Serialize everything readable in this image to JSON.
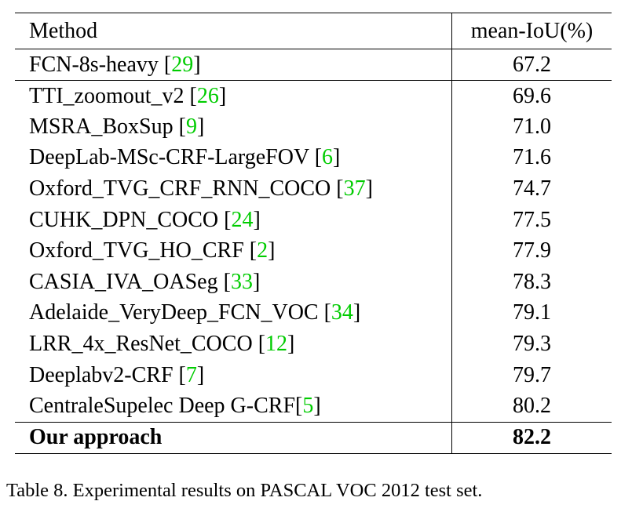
{
  "table": {
    "headers": {
      "method": "Method",
      "score": "mean-IoU(%)"
    },
    "rows": [
      {
        "method": "FCN-8s-heavy ",
        "ref": "29",
        "score": "67.2"
      },
      {
        "method": "TTI_zoomout_v2 ",
        "ref": "26",
        "score": "69.6"
      },
      {
        "method": "MSRA_BoxSup ",
        "ref": "9",
        "score": "71.0"
      },
      {
        "method": "DeepLab-MSc-CRF-LargeFOV ",
        "ref": "6",
        "score": "71.6"
      },
      {
        "method": "Oxford_TVG_CRF_RNN_COCO ",
        "ref": "37",
        "score": "74.7"
      },
      {
        "method": "CUHK_DPN_COCO ",
        "ref": "24",
        "score": "77.5"
      },
      {
        "method": "Oxford_TVG_HO_CRF ",
        "ref": "2",
        "score": "77.9"
      },
      {
        "method": "CASIA_IVA_OASeg ",
        "ref": "33",
        "score": "78.3"
      },
      {
        "method": "Adelaide_VeryDeep_FCN_VOC ",
        "ref": "34",
        "score": "79.1"
      },
      {
        "method": "LRR_4x_ResNet_COCO ",
        "ref": "12",
        "score": "79.3"
      },
      {
        "method": "Deeplabv2-CRF ",
        "ref": "7",
        "score": "79.7"
      },
      {
        "method": "CentraleSupelec Deep G-CRF",
        "ref": "5",
        "score": "80.2"
      }
    ],
    "final": {
      "method": "Our approach",
      "score": "82.2"
    }
  },
  "caption": "Table 8. Experimental results on PASCAL VOC 2012 test set."
}
